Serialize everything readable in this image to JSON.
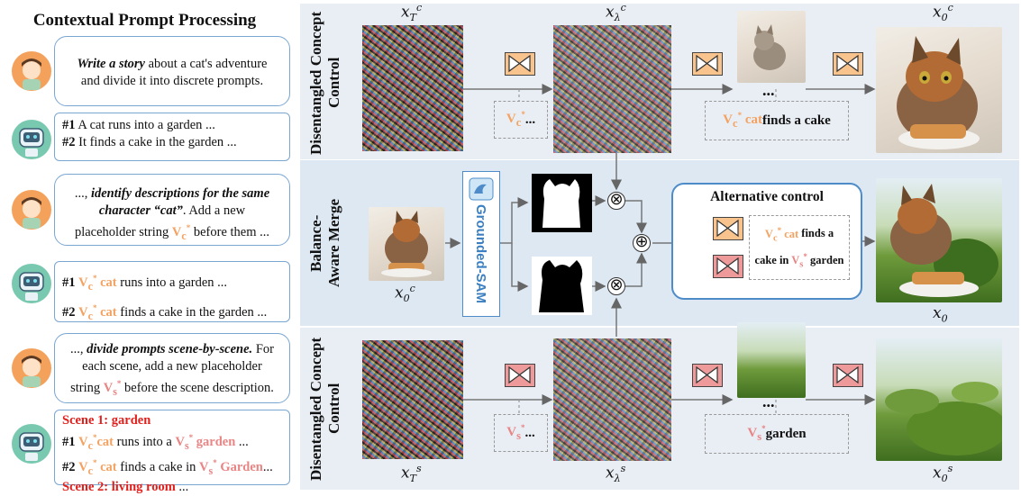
{
  "left": {
    "title": "Contextual Prompt Processing",
    "b1": {
      "bold": "Write a story",
      "rest1": " about a cat's adventure",
      "rest2": "and divide it into discrete prompts."
    },
    "b2": {
      "l1_num": "#1",
      "l1": " A cat runs into a garden ...",
      "l2_num": "#2",
      "l2": " It finds a cake in the garden ..."
    },
    "b3": {
      "l1a": "..., ",
      "l1b": "identify descriptions for the same",
      "l2a": "character ",
      "l2b": "“cat”",
      "l2c": ". Add a new",
      "l3a": "placeholder string ",
      "l3v": "V",
      "l3sub": "c",
      "l3sup": "*",
      "l3c": "  before them ..."
    },
    "b4": {
      "l1_num": "#1",
      "v": "V",
      "sub": "c",
      "sup": "*",
      "cat": " cat",
      "l1": " runs into a garden ...",
      "l2_num": "#2",
      "l2": " finds a cake in the garden ..."
    },
    "b5": {
      "l1a": "..., ",
      "l1b": "divide prompts scene-by-scene.",
      "l1c": " For",
      "l2": "each scene, add a new placeholder",
      "l3a": "string ",
      "l3v": "V",
      "l3sub": "s",
      "l3sup": "*",
      "l3c": " before the scene description."
    },
    "b6": {
      "scene1": "Scene 1: garden",
      "l1_num": "#1",
      "v": "V",
      "csub": "c",
      "ssub": "s",
      "sup": "*",
      "cat": "cat",
      "l1": " runs into a ",
      "garden": "garden",
      "l1end": " ...",
      "l2_num": "#2",
      "l2": " finds a cake in ",
      "Garden": "Garden",
      "l2end": "...",
      "scene2": "Scene 2: living room",
      "scene2end": " ..."
    }
  },
  "panels": {
    "top_label": "Disentangled Concept Control",
    "mid_label1": "Balance-",
    "mid_label2": "Aware Merge",
    "bot_label": "Disentangled Concept Control",
    "grounded_sam": "Grounded-SAM",
    "alt_title": "Alternative control",
    "top_prompt_v": "V",
    "top_prompt_sub": "c",
    "top_prompt_sup": "*",
    "top_prompt_tail": " ...",
    "top_caption_v": "V",
    "top_caption_sub": "c",
    "top_caption_sup": "*",
    "top_caption_cat": " cat",
    "top_caption_rest": " finds a cake",
    "bot_prompt_v": "V",
    "bot_prompt_sub": "s",
    "bot_prompt_sup": "*",
    "bot_prompt_tail": " ...",
    "bot_caption_v": "V",
    "bot_caption_sub": "s",
    "bot_caption_sup": "*",
    "bot_caption_rest": "  garden",
    "alt_l1_v": "V",
    "alt_l1_sub": "c",
    "alt_l1_sup": "*",
    "alt_l1_cat": " cat",
    "alt_l1_rest": " finds a",
    "alt_l2a": "cake in ",
    "alt_l2_v": "V",
    "alt_l2_sub": "s",
    "alt_l2_sup": "*",
    "alt_l2_rest": " garden",
    "ellipsis": "..."
  },
  "math": {
    "x": "x",
    "T": "T",
    "lambda": "λ",
    "zero": "0",
    "c": "c",
    "s": "s"
  },
  "colors": {
    "orange": "#f4a261",
    "pink": "#e88585",
    "red": "#e0201c",
    "border_blue": "#4d8cc9"
  }
}
